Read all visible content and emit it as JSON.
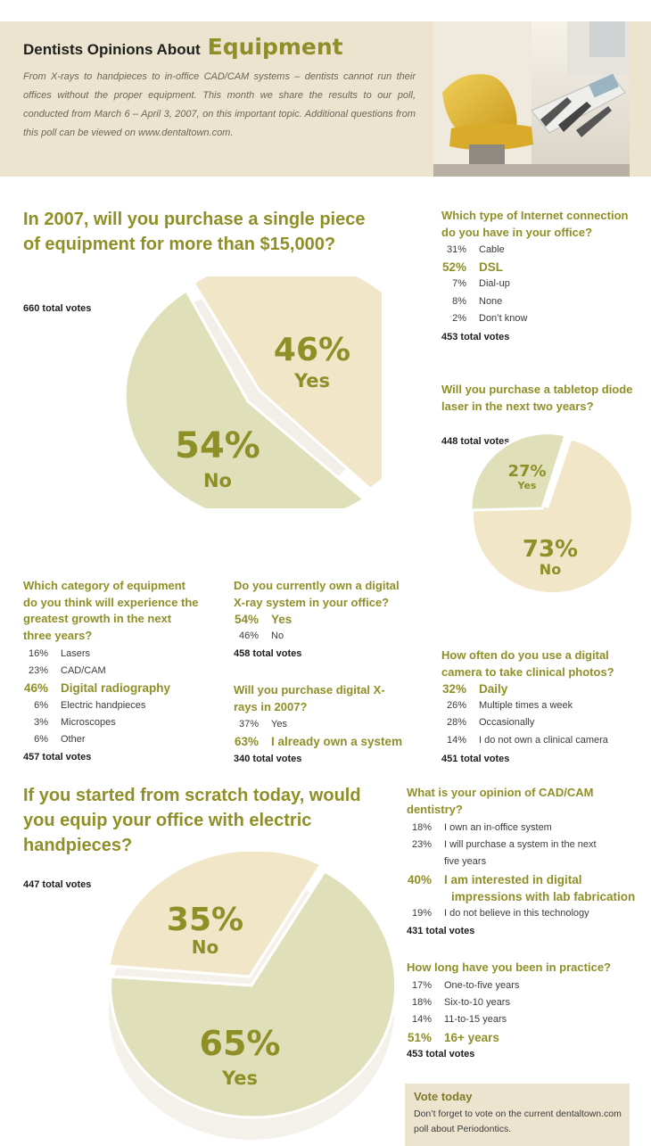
{
  "header": {
    "title_small": "Dentists Opinions About",
    "title_big": "Equipment",
    "intro": "From X-rays to handpieces to in-office CAD/CAM systems – dentists cannot run their offices without the proper equipment. This month we share the results to our poll, conducted from March 6 – April 3, 2007, on this important topic. Additional questions from this poll can be viewed on www.dentaltown.com.",
    "photo_icon": "dental-chair-photo"
  },
  "colors": {
    "olive": "#8f8f28",
    "cream": "#ece4cf",
    "sage_slice": "#dfdfb9",
    "cream_slice": "#f1e6c8"
  },
  "q1": {
    "question": "In 2007, will you purchase a single piece of equipment for more than $15,000?",
    "votes": "660 total votes",
    "slices": [
      {
        "pct": "46%",
        "label": "Yes"
      },
      {
        "pct": "54%",
        "label": "No"
      }
    ]
  },
  "q2": {
    "question": "Which type of Internet connection do you have in your office?",
    "votes": "453 total votes",
    "options": [
      {
        "pct": "31%",
        "label": "Cable"
      },
      {
        "pct": "52%",
        "label": "DSL"
      },
      {
        "pct": "7%",
        "label": "Dial-up"
      },
      {
        "pct": "8%",
        "label": "None"
      },
      {
        "pct": "2%",
        "label": "Don’t know"
      }
    ]
  },
  "q3": {
    "question": "Will you purchase a tabletop diode laser in the next two years?",
    "votes": "448 total votes",
    "slices": [
      {
        "pct": "27%",
        "label": "Yes"
      },
      {
        "pct": "73%",
        "label": "No"
      }
    ]
  },
  "q4": {
    "question": "Which category of equipment do you think will experience the greatest growth in the next three years?",
    "votes": "457 total votes",
    "options": [
      {
        "pct": "16%",
        "label": "Lasers"
      },
      {
        "pct": "23%",
        "label": "CAD/CAM"
      },
      {
        "pct": "46%",
        "label": "Digital radiography"
      },
      {
        "pct": "6%",
        "label": "Electric handpieces"
      },
      {
        "pct": "3%",
        "label": "Microscopes"
      },
      {
        "pct": "6%",
        "label": "Other"
      }
    ]
  },
  "q5": {
    "question": "Do you currently own a digital X-ray system in your office?",
    "votes": "458 total votes",
    "options": [
      {
        "pct": "54%",
        "label": "Yes"
      },
      {
        "pct": "46%",
        "label": "No"
      }
    ]
  },
  "q6": {
    "question": "Will you purchase digital X-rays in 2007?",
    "votes": "340 total votes",
    "options": [
      {
        "pct": "37%",
        "label": "Yes"
      },
      {
        "pct": "63%",
        "label": "I already own a system"
      }
    ]
  },
  "q7": {
    "question": "How often do you use a digital camera to take clinical photos?",
    "votes": "451 total votes",
    "options": [
      {
        "pct": "32%",
        "label": "Daily"
      },
      {
        "pct": "26%",
        "label": "Multiple times a week"
      },
      {
        "pct": "28%",
        "label": "Occasionally"
      },
      {
        "pct": "14%",
        "label": "I do not own a clinical camera"
      }
    ]
  },
  "q8": {
    "question": "If you started from scratch today, would you equip your office with electric handpieces?",
    "votes": "447 total votes",
    "slices": [
      {
        "pct": "35%",
        "label": "No"
      },
      {
        "pct": "65%",
        "label": "Yes"
      }
    ]
  },
  "q9": {
    "question": "What is your opinion of CAD/CAM dentistry?",
    "votes": "431 total votes",
    "options": [
      {
        "pct": "18%",
        "label": "I own an in-office system"
      },
      {
        "pct": "23%",
        "label": "I will purchase a system in the next",
        "label2": "five years"
      },
      {
        "pct": "40%",
        "label": "I am interested in digital",
        "label2": "impressions with lab fabrication"
      },
      {
        "pct": "19%",
        "label": "I do not believe in this technology"
      }
    ]
  },
  "q10": {
    "question": "How long have you been in practice?",
    "votes": "453 total votes",
    "options": [
      {
        "pct": "17%",
        "label": "One-to-five years"
      },
      {
        "pct": "18%",
        "label": "Six-to-10 years"
      },
      {
        "pct": "14%",
        "label": "11-to-15 years"
      },
      {
        "pct": "51%",
        "label": "16+ years"
      }
    ]
  },
  "vote_box": {
    "title": "Vote today",
    "text": "Don’t forget to vote on the current dentaltown.com poll about Periodontics."
  },
  "chart_data": [
    {
      "type": "pie",
      "title": "In 2007, will you purchase a single piece of equipment for more than $15,000?",
      "categories": [
        "Yes",
        "No"
      ],
      "values": [
        46,
        54
      ]
    },
    {
      "type": "pie",
      "title": "Will you purchase a tabletop diode laser in the next two years?",
      "categories": [
        "Yes",
        "No"
      ],
      "values": [
        27,
        73
      ]
    },
    {
      "type": "pie",
      "title": "If you started from scratch today, would you equip your office with electric handpieces?",
      "categories": [
        "No",
        "Yes"
      ],
      "values": [
        35,
        65
      ]
    }
  ]
}
